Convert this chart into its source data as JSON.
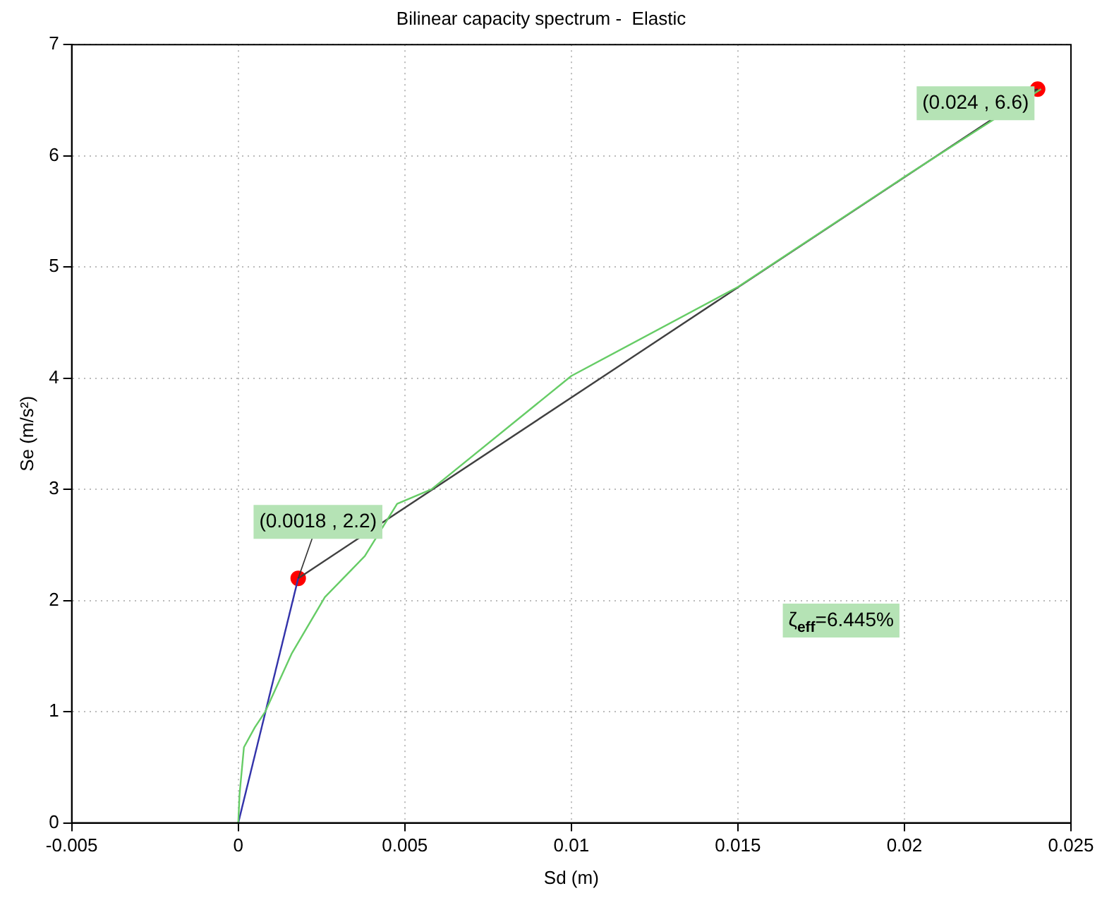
{
  "chart_data": {
    "type": "line",
    "title": "Bilinear capacity spectrum -  Elastic",
    "xlabel": "Sd (m)",
    "ylabel": "Se (m/s²)",
    "xlim": [
      -0.005,
      0.025
    ],
    "xticks": [
      -0.005,
      0,
      0.005,
      0.01,
      0.015,
      0.02,
      0.025
    ],
    "ylim": [
      0,
      7
    ],
    "yticks": [
      0,
      1,
      2,
      3,
      4,
      5,
      6,
      7
    ],
    "grid": true,
    "legend": false,
    "line_style": "dotted",
    "series": [
      {
        "color": "#66cc66",
        "marker": "none",
        "line_style": "solid",
        "x": [
          0,
          4e-05,
          0.00017,
          0.0005,
          0.00081,
          0.0016,
          0.0026,
          0.0038,
          0.00477,
          0.0058,
          0.01,
          0.015,
          0.02,
          0.0241
        ],
        "values": [
          0,
          0.26,
          0.68,
          0.86,
          1.0,
          1.52,
          2.03,
          2.4,
          2.87,
          3.0,
          4.02,
          4.82,
          5.81,
          6.6
        ]
      },
      {
        "color": "#3333aa",
        "marker": "none",
        "line_style": "solid",
        "x": [
          0,
          0.0018
        ],
        "values": [
          0,
          2.2
        ]
      },
      {
        "color": "#404040",
        "marker": "none",
        "line_style": "solid",
        "x": [
          0.0018,
          0.024
        ],
        "values": [
          2.2,
          6.6
        ]
      },
      {
        "type": "scatter",
        "color": "#ff0000",
        "marker": "circle",
        "x": [
          0.0018,
          0.024
        ],
        "values": [
          2.2,
          6.6
        ]
      }
    ],
    "annotations": [
      {
        "text": "(0.0018 , 2.2)",
        "x": 0.0018,
        "y": 2.2
      },
      {
        "text": "(0.024 , 6.6)",
        "x": 0.024,
        "y": 6.6
      },
      "ζ$_{eff}$=6.445%"
    ]
  }
}
